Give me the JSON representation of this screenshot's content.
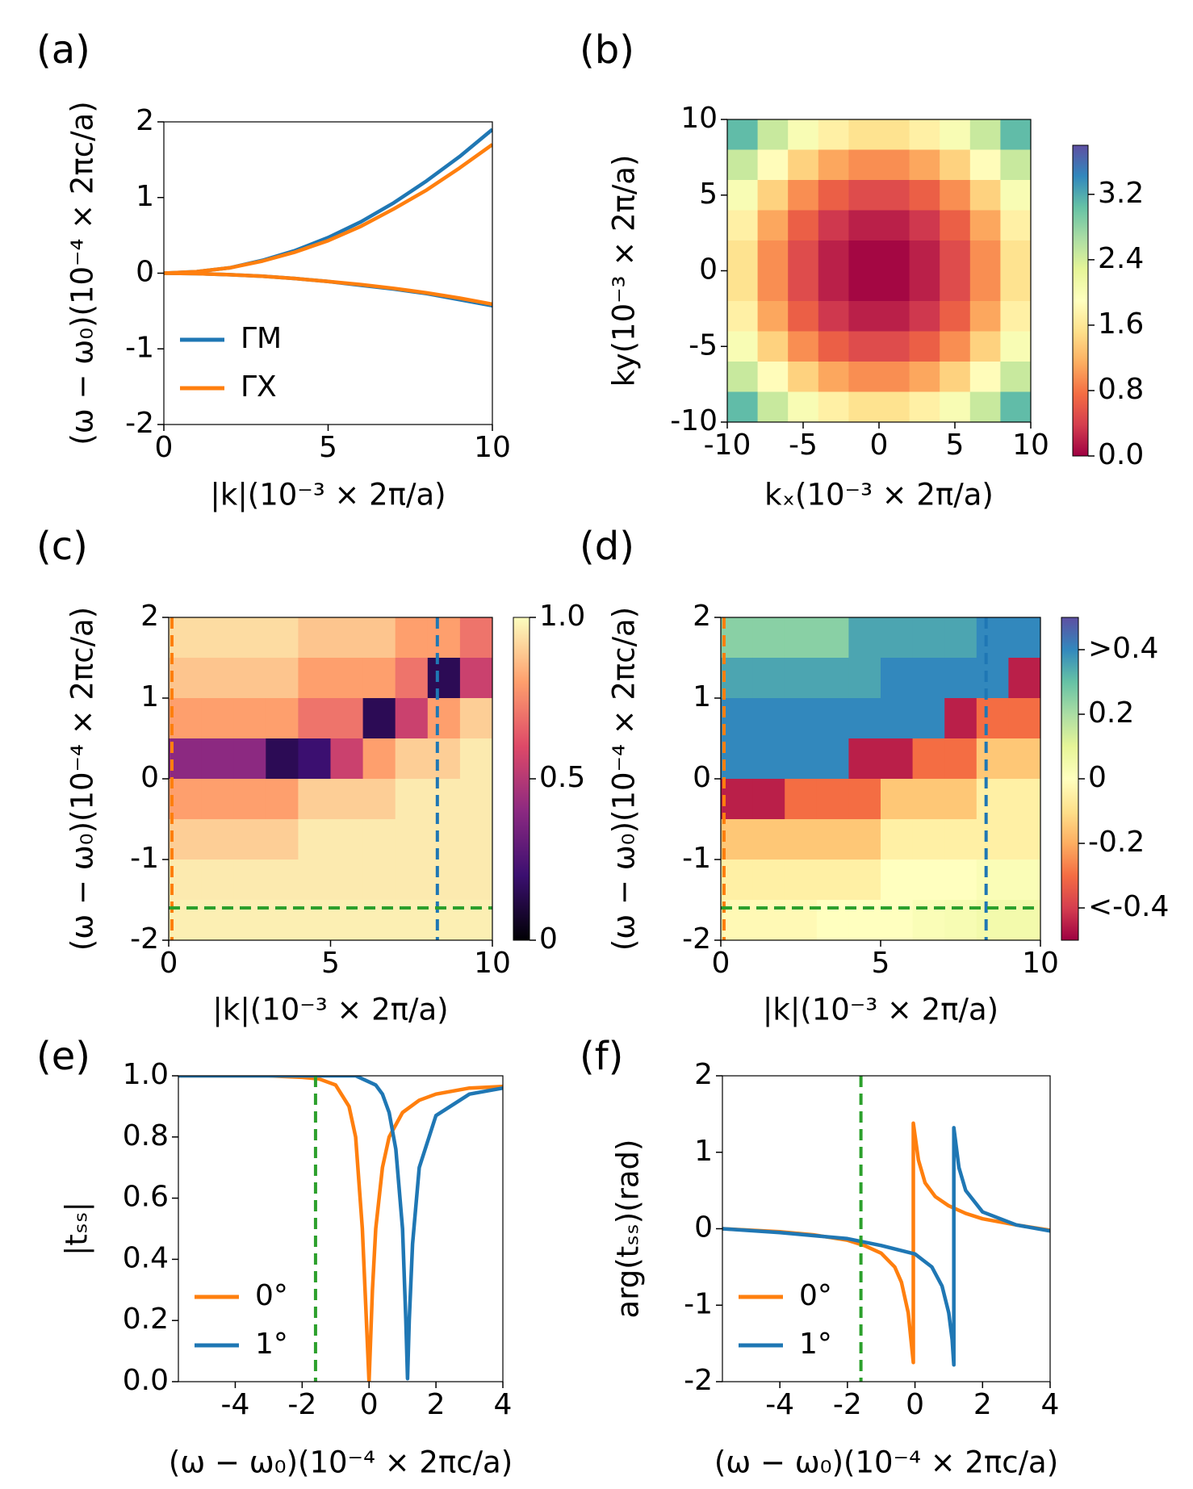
{
  "chart_data": [
    {
      "type": "line",
      "label": "(a)",
      "xlabel": "|k|(10⁻³ × 2π/a)",
      "ylabel": "(ω − ω₀)(10⁻⁴ × 2πc/a)",
      "xlim": [
        0,
        10
      ],
      "ylim": [
        -2,
        2
      ],
      "xticks": [
        0,
        5,
        10
      ],
      "yticks": [
        -2,
        -1,
        0,
        1,
        2
      ],
      "legend": "lower left",
      "series": [
        {
          "name": "ΓM",
          "color": "#1f77b4",
          "branches": [
            {
              "x": [
                0,
                1,
                2,
                3,
                4,
                5,
                6,
                7,
                8,
                9,
                10
              ],
              "values": [
                0,
                0.02,
                0.07,
                0.17,
                0.3,
                0.47,
                0.68,
                0.93,
                1.22,
                1.54,
                1.9
              ]
            },
            {
              "x": [
                0,
                1,
                2,
                3,
                4,
                5,
                6,
                7,
                8,
                9,
                10
              ],
              "values": [
                0,
                -0.005,
                -0.02,
                -0.04,
                -0.07,
                -0.11,
                -0.16,
                -0.21,
                -0.27,
                -0.35,
                -0.43
              ]
            }
          ]
        },
        {
          "name": "ΓX",
          "color": "#ff7f0e",
          "branches": [
            {
              "x": [
                0,
                1,
                2,
                3,
                4,
                5,
                6,
                7,
                8,
                9,
                10
              ],
              "values": [
                0,
                0.02,
                0.07,
                0.16,
                0.28,
                0.43,
                0.62,
                0.85,
                1.1,
                1.39,
                1.7
              ]
            },
            {
              "x": [
                0,
                1,
                2,
                3,
                4,
                5,
                6,
                7,
                8,
                9,
                10
              ],
              "values": [
                0,
                -0.005,
                -0.02,
                -0.04,
                -0.07,
                -0.11,
                -0.15,
                -0.2,
                -0.26,
                -0.33,
                -0.41
              ]
            }
          ]
        }
      ]
    },
    {
      "type": "heatmap",
      "label": "(b)",
      "xlabel": "kₓ(10⁻³ × 2π/a)",
      "ylabel": "ky(10⁻³ × 2π/a)",
      "xlim": [
        -10,
        10
      ],
      "ylim": [
        -10,
        10
      ],
      "xticks": [
        -10,
        -5,
        0,
        5,
        10
      ],
      "yticks": [
        -10,
        -5,
        0,
        5,
        10
      ],
      "x": [
        -9,
        -7,
        -5,
        -3,
        -1,
        1,
        3,
        5,
        7,
        9
      ],
      "y": [
        9,
        7,
        5,
        3,
        1,
        -1,
        -3,
        -5,
        -7,
        -9
      ],
      "z": [
        [
          3.08,
          2.47,
          2.01,
          1.71,
          1.56,
          1.56,
          1.71,
          2.01,
          2.47,
          3.08
        ],
        [
          2.47,
          1.86,
          1.41,
          1.1,
          0.95,
          0.95,
          1.1,
          1.41,
          1.86,
          2.47
        ],
        [
          2.01,
          1.41,
          0.95,
          0.65,
          0.49,
          0.49,
          0.65,
          0.95,
          1.41,
          2.01
        ],
        [
          1.71,
          1.1,
          0.65,
          0.34,
          0.19,
          0.19,
          0.34,
          0.65,
          1.1,
          1.71
        ],
        [
          1.56,
          0.95,
          0.49,
          0.19,
          0.04,
          0.04,
          0.19,
          0.49,
          0.95,
          1.56
        ],
        [
          1.56,
          0.95,
          0.49,
          0.19,
          0.04,
          0.04,
          0.19,
          0.49,
          0.95,
          1.56
        ],
        [
          1.71,
          1.1,
          0.65,
          0.34,
          0.19,
          0.19,
          0.34,
          0.65,
          1.1,
          1.71
        ],
        [
          2.01,
          1.41,
          0.95,
          0.65,
          0.49,
          0.49,
          0.65,
          0.95,
          1.41,
          2.01
        ],
        [
          2.47,
          1.86,
          1.41,
          1.1,
          0.95,
          0.95,
          1.1,
          1.41,
          1.86,
          2.47
        ],
        [
          3.08,
          2.47,
          2.01,
          1.71,
          1.56,
          1.56,
          1.71,
          2.01,
          2.47,
          3.08
        ]
      ],
      "zlim": [
        0,
        3.8
      ],
      "colorbar_ticks": [
        {
          "value": 0,
          "label": "0.0"
        },
        0.8,
        1.6,
        2.4,
        3.2
      ],
      "colormap": [
        "#9e0142",
        "#d53e4f",
        "#f46d43",
        "#fdae61",
        "#fee08b",
        "#ffffbf",
        "#e6f598",
        "#abdda4",
        "#66c2a5",
        "#3288bd",
        "#5e4fa2"
      ]
    },
    {
      "type": "heatmap",
      "label": "(c)",
      "xlabel": "|k|(10⁻³ × 2π/a)",
      "ylabel": "(ω − ω₀)(10⁻⁴ × 2πc/a)",
      "xlim": [
        0,
        10
      ],
      "ylim": [
        -2,
        2
      ],
      "xticks": [
        0,
        5,
        10
      ],
      "yticks": [
        -2,
        -1,
        0,
        1,
        2
      ],
      "x": [
        0.5,
        1.5,
        2.5,
        3.5,
        4.5,
        5.5,
        6.5,
        7.5,
        8.5,
        9.5
      ],
      "y": [
        1.75,
        1.25,
        0.75,
        0.25,
        -0.25,
        -0.75,
        -1.25,
        -1.75
      ],
      "z": [
        [
          0.93,
          0.93,
          0.93,
          0.93,
          0.88,
          0.88,
          0.88,
          0.8,
          0.8,
          0.7
        ],
        [
          0.88,
          0.88,
          0.88,
          0.88,
          0.8,
          0.8,
          0.8,
          0.7,
          0.15,
          0.55
        ],
        [
          0.8,
          0.8,
          0.8,
          0.8,
          0.7,
          0.7,
          0.15,
          0.55,
          0.8,
          0.9
        ],
        [
          0.4,
          0.4,
          0.4,
          0.15,
          0.2,
          0.55,
          0.8,
          0.9,
          0.9,
          0.96
        ],
        [
          0.8,
          0.8,
          0.8,
          0.8,
          0.9,
          0.9,
          0.9,
          0.96,
          0.96,
          0.96
        ],
        [
          0.9,
          0.9,
          0.9,
          0.9,
          0.96,
          0.96,
          0.96,
          0.96,
          0.96,
          0.96
        ],
        [
          0.96,
          0.96,
          0.96,
          0.96,
          0.96,
          0.96,
          0.96,
          0.96,
          0.96,
          0.96
        ],
        [
          0.97,
          0.97,
          0.97,
          0.97,
          0.97,
          0.97,
          0.97,
          0.97,
          0.97,
          0.97
        ]
      ],
      "zlim": [
        0,
        1
      ],
      "colorbar_ticks": [
        0,
        0.5,
        {
          "value": 1,
          "label": "1.0"
        }
      ],
      "colormap": [
        "#000004",
        "#3b0f70",
        "#8c2981",
        "#de4968",
        "#fe9f6d",
        "#fcfdbf"
      ],
      "lines": [
        {
          "orientation": "vertical",
          "value": 0.1,
          "color": "#ff7f0e"
        },
        {
          "orientation": "vertical",
          "value": 8.3,
          "color": "#1f77b4"
        },
        {
          "orientation": "horizontal",
          "value": -1.6,
          "color": "#2ca02c"
        }
      ]
    },
    {
      "type": "heatmap",
      "label": "(d)",
      "xlabel": "|k|(10⁻³ × 2π/a)",
      "ylabel": "(ω − ω₀)(10⁻⁴ × 2πc/a)",
      "xlim": [
        0,
        10
      ],
      "ylim": [
        -2,
        2
      ],
      "xticks": [
        0,
        5,
        10
      ],
      "yticks": [
        -2,
        -1,
        0,
        1,
        2
      ],
      "x": [
        0.5,
        1.5,
        2.5,
        3.5,
        4.5,
        5.5,
        6.5,
        7.5,
        8.5,
        9.5
      ],
      "y": [
        1.75,
        1.25,
        0.75,
        0.25,
        -0.25,
        -0.75,
        -1.25,
        -1.75
      ],
      "z": [
        [
          0.25,
          0.25,
          0.25,
          0.25,
          0.35,
          0.35,
          0.35,
          0.35,
          0.4,
          0.4
        ],
        [
          0.35,
          0.35,
          0.35,
          0.35,
          0.35,
          0.4,
          0.4,
          0.4,
          0.4,
          -0.45
        ],
        [
          0.4,
          0.4,
          0.4,
          0.4,
          0.4,
          0.4,
          0.4,
          -0.45,
          -0.3,
          -0.3
        ],
        [
          0.4,
          0.4,
          0.4,
          0.4,
          -0.45,
          -0.45,
          -0.3,
          -0.3,
          -0.15,
          -0.15
        ],
        [
          -0.45,
          -0.45,
          -0.3,
          -0.3,
          -0.3,
          -0.15,
          -0.15,
          -0.15,
          -0.05,
          -0.05
        ],
        [
          -0.15,
          -0.15,
          -0.15,
          -0.15,
          -0.15,
          -0.05,
          -0.05,
          -0.05,
          -0.05,
          -0.05
        ],
        [
          -0.05,
          -0.05,
          -0.05,
          -0.05,
          -0.05,
          0,
          0,
          0,
          0.02,
          0.02
        ],
        [
          -0.02,
          -0.02,
          -0.02,
          0,
          0,
          0,
          0.02,
          0.03,
          0.05,
          0.05
        ]
      ],
      "zlim": [
        -0.5,
        0.5
      ],
      "colorbar_ticks": [
        {
          "value": 0.4,
          "label": ">0.4"
        },
        0.2,
        0,
        -0.2,
        {
          "value": -0.4,
          "label": "<-0.4"
        }
      ],
      "colormap": [
        "#9e0142",
        "#d53e4f",
        "#f46d43",
        "#fdae61",
        "#fee08b",
        "#ffffbf",
        "#e6f598",
        "#abdda4",
        "#66c2a5",
        "#3288bd",
        "#5e4fa2"
      ],
      "lines": [
        {
          "orientation": "vertical",
          "value": 0.1,
          "color": "#ff7f0e"
        },
        {
          "orientation": "vertical",
          "value": 8.3,
          "color": "#1f77b4"
        },
        {
          "orientation": "horizontal",
          "value": -1.6,
          "color": "#2ca02c"
        }
      ]
    },
    {
      "type": "line",
      "label": "(e)",
      "xlabel": "(ω − ω₀)(10⁻⁴ × 2πc/a)",
      "ylabel": "|tₛₛ|",
      "xlim": [
        -5.7,
        4
      ],
      "ylim": [
        0,
        1
      ],
      "xticks": [
        -4,
        -2,
        0,
        2,
        4
      ],
      "yticks": [
        {
          "value": 0,
          "label": "0.0"
        },
        0.2,
        0.4,
        0.6,
        0.8,
        {
          "value": 1,
          "label": "1.0"
        }
      ],
      "legend": "lower left",
      "series": [
        {
          "name": "0°",
          "color": "#ff7f0e",
          "x": [
            -5.7,
            -4,
            -3,
            -2,
            -1.5,
            -1,
            -0.6,
            -0.4,
            -0.2,
            -0.1,
            0,
            0.1,
            0.2,
            0.4,
            0.6,
            1,
            1.5,
            2,
            3,
            4
          ],
          "values": [
            1,
            1,
            1,
            0.995,
            0.99,
            0.97,
            0.9,
            0.8,
            0.5,
            0.25,
            0,
            0.3,
            0.5,
            0.7,
            0.8,
            0.88,
            0.92,
            0.94,
            0.96,
            0.965
          ]
        },
        {
          "name": "1°",
          "color": "#1f77b4",
          "x": [
            -5.7,
            -4,
            -2,
            -1,
            -0.4,
            0,
            0.2,
            0.4,
            0.6,
            0.8,
            1,
            1.1,
            1.15,
            1.2,
            1.3,
            1.5,
            2,
            3,
            4
          ],
          "values": [
            1,
            1,
            1,
            1,
            1,
            0.98,
            0.97,
            0.94,
            0.88,
            0.76,
            0.5,
            0.2,
            0.01,
            0.2,
            0.45,
            0.7,
            0.87,
            0.94,
            0.96
          ]
        }
      ],
      "lines": [
        {
          "orientation": "vertical",
          "value": -1.6,
          "color": "#2ca02c"
        }
      ]
    },
    {
      "type": "line",
      "label": "(f)",
      "xlabel": "(ω − ω₀)(10⁻⁴ × 2πc/a)",
      "ylabel": "arg(tₛₛ)(rad)",
      "xlim": [
        -5.7,
        4
      ],
      "ylim": [
        -2,
        2
      ],
      "xticks": [
        -4,
        -2,
        0,
        2,
        4
      ],
      "yticks": [
        -2,
        -1,
        0,
        1,
        2
      ],
      "legend": "lower left",
      "series": [
        {
          "name": "0°",
          "color": "#ff7f0e",
          "x": [
            -5.7,
            -4,
            -3,
            -2,
            -1.5,
            -1,
            -0.6,
            -0.4,
            -0.2,
            -0.05,
            -0.05,
            0.1,
            0.3,
            0.6,
            1,
            1.5,
            2,
            3,
            4
          ],
          "values": [
            0,
            -0.04,
            -0.08,
            -0.15,
            -0.22,
            -0.32,
            -0.5,
            -0.7,
            -1.1,
            -1.75,
            1.38,
            0.9,
            0.6,
            0.42,
            0.3,
            0.2,
            0.13,
            0.05,
            -0.02
          ]
        },
        {
          "name": "1°",
          "color": "#1f77b4",
          "x": [
            -5.7,
            -4,
            -2,
            -1,
            0,
            0.5,
            0.8,
            1,
            1.1,
            1.15,
            1.15,
            1.3,
            1.5,
            2,
            3,
            4
          ],
          "values": [
            0,
            -0.05,
            -0.13,
            -0.22,
            -0.33,
            -0.5,
            -0.75,
            -1.1,
            -1.45,
            -1.78,
            1.32,
            0.8,
            0.5,
            0.22,
            0.05,
            -0.03
          ]
        }
      ],
      "lines": [
        {
          "orientation": "vertical",
          "value": -1.6,
          "color": "#2ca02c"
        }
      ]
    }
  ]
}
